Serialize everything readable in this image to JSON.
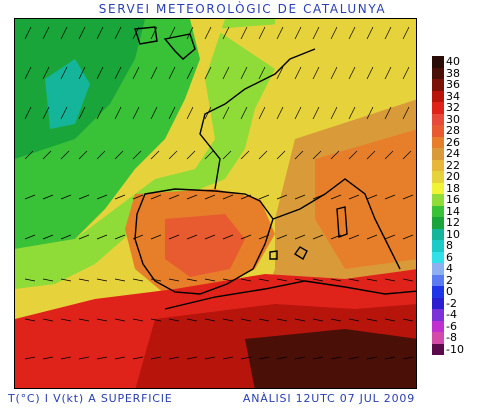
{
  "header": {
    "title": "SERVEI METEOROLÒGIC DE CATALUNYA"
  },
  "footer": {
    "left": "T(°C) I V(kt) A SUPERFICIE",
    "right": "ANÀLISI 12UTC 07 JUL 2009"
  },
  "legend": [
    {
      "label": "40",
      "color": "#2b0b06"
    },
    {
      "label": "38",
      "color": "#4a0f07"
    },
    {
      "label": "36",
      "color": "#7a1208"
    },
    {
      "label": "34",
      "color": "#b7140b"
    },
    {
      "label": "32",
      "color": "#e0231a"
    },
    {
      "label": "30",
      "color": "#e74a3a"
    },
    {
      "label": "28",
      "color": "#e85a30"
    },
    {
      "label": "26",
      "color": "#e77f2a"
    },
    {
      "label": "24",
      "color": "#d99a3a"
    },
    {
      "label": "22",
      "color": "#e7b73a"
    },
    {
      "label": "20",
      "color": "#e6d33c"
    },
    {
      "label": "18",
      "color": "#f1f337"
    },
    {
      "label": "16",
      "color": "#8fdc38"
    },
    {
      "label": "14",
      "color": "#39c238"
    },
    {
      "label": "12",
      "color": "#1aa53a"
    },
    {
      "label": "10",
      "color": "#14b59a"
    },
    {
      "label": "8",
      "color": "#1ccac8"
    },
    {
      "label": "6",
      "color": "#32e0e8"
    },
    {
      "label": "4",
      "color": "#8fb0f0"
    },
    {
      "label": "2",
      "color": "#5a7cf0"
    },
    {
      "label": "0",
      "color": "#1f34e6"
    },
    {
      "label": "-2",
      "color": "#2a1ed0"
    },
    {
      "label": "-4",
      "color": "#7a32d8"
    },
    {
      "label": "-6",
      "color": "#c030d0"
    },
    {
      "label": "-8",
      "color": "#d34aa8"
    },
    {
      "label": "-10",
      "color": "#5a0a4a"
    }
  ]
}
